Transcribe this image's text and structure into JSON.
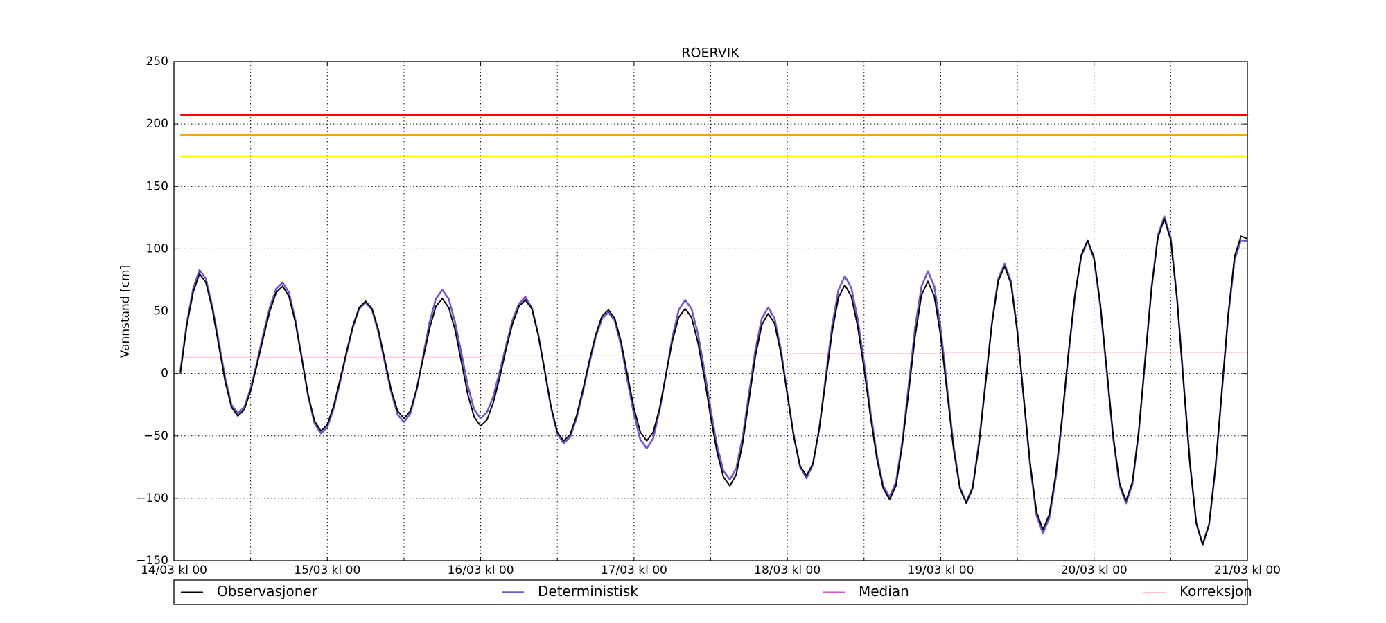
{
  "chart_data": {
    "type": "line",
    "title": "ROERVIK",
    "ylabel": "Vannstand [cm]",
    "xlim": [
      0,
      168
    ],
    "ylim": [
      -150,
      250
    ],
    "xticks": [
      {
        "value": 0,
        "label": "14/03 kl 00"
      },
      {
        "value": 24,
        "label": "15/03 kl 00"
      },
      {
        "value": 48,
        "label": "16/03 kl 00"
      },
      {
        "value": 72,
        "label": "17/03 kl 00"
      },
      {
        "value": 96,
        "label": "18/03 kl 00"
      },
      {
        "value": 120,
        "label": "19/03 kl 00"
      },
      {
        "value": 144,
        "label": "20/03 kl 00"
      },
      {
        "value": 168,
        "label": "21/03 kl 00"
      }
    ],
    "x_minor_ticks": [
      12,
      36,
      60,
      84,
      108,
      132,
      156
    ],
    "yticks": [
      {
        "value": -150,
        "label": "−150"
      },
      {
        "value": -100,
        "label": "−100"
      },
      {
        "value": -50,
        "label": "−50"
      },
      0,
      50,
      100,
      150,
      200,
      250
    ],
    "grid": true,
    "legend": "below",
    "reference_lines": [
      {
        "value": 207,
        "color": "#ff0000"
      },
      {
        "value": 191,
        "color": "#ffa500"
      },
      {
        "value": 174,
        "color": "#ffff00"
      }
    ],
    "x": [
      1,
      2,
      3,
      4,
      5,
      6,
      7,
      8,
      9,
      10,
      11,
      12,
      13,
      14,
      15,
      16,
      17,
      18,
      19,
      20,
      21,
      22,
      23,
      24,
      25,
      26,
      27,
      28,
      29,
      30,
      31,
      32,
      33,
      34,
      35,
      36,
      37,
      38,
      39,
      40,
      41,
      42,
      43,
      44,
      45,
      46,
      47,
      48,
      49,
      50,
      51,
      52,
      53,
      54,
      55,
      56,
      57,
      58,
      59,
      60,
      61,
      62,
      63,
      64,
      65,
      66,
      67,
      68,
      69,
      70,
      71,
      72,
      73,
      74,
      75,
      76,
      77,
      78,
      79,
      80,
      81,
      82,
      83,
      84,
      85,
      86,
      87,
      88,
      89,
      90,
      91,
      92,
      93,
      94,
      95,
      96,
      97,
      98,
      99,
      100,
      101,
      102,
      103,
      104,
      105,
      106,
      107,
      108,
      109,
      110,
      111,
      112,
      113,
      114,
      115,
      116,
      117,
      118,
      119,
      120,
      121,
      122,
      123,
      124,
      125,
      126,
      127,
      128,
      129,
      130,
      131,
      132,
      133,
      134,
      135,
      136,
      137,
      138,
      139,
      140,
      141,
      142,
      143,
      144,
      145,
      146,
      147,
      148,
      149,
      150,
      151,
      152,
      153,
      154,
      155,
      156,
      157,
      158,
      159,
      160,
      161,
      162,
      163,
      164,
      165,
      166,
      167,
      168
    ],
    "series": [
      {
        "name": "Observasjoner",
        "color": "#000000",
        "width": 2,
        "values": [
          0,
          38,
          65,
          80,
          73,
          52,
          23,
          -6,
          -27,
          -34,
          -29,
          -14,
          7,
          29,
          50,
          65,
          70,
          62,
          41,
          12,
          -17,
          -38,
          -46,
          -41,
          -26,
          -5,
          17,
          38,
          53,
          58,
          52,
          35,
          11,
          -13,
          -30,
          -36,
          -30,
          -12,
          12,
          36,
          54,
          60,
          53,
          35,
          9,
          -17,
          -35,
          -42,
          -37,
          -23,
          -3,
          20,
          40,
          54,
          59,
          52,
          31,
          3,
          -26,
          -47,
          -54,
          -49,
          -34,
          -13,
          10,
          31,
          46,
          51,
          44,
          25,
          -2,
          -28,
          -47,
          -54,
          -47,
          -28,
          -1,
          26,
          45,
          52,
          45,
          25,
          -3,
          -35,
          -63,
          -83,
          -90,
          -81,
          -56,
          -21,
          14,
          39,
          48,
          40,
          16,
          -17,
          -50,
          -74,
          -82,
          -72,
          -44,
          -6,
          33,
          61,
          71,
          62,
          38,
          4,
          -34,
          -68,
          -92,
          -101,
          -90,
          -57,
          -14,
          30,
          63,
          74,
          62,
          30,
          -15,
          -60,
          -92,
          -104,
          -92,
          -57,
          -9,
          39,
          74,
          86,
          72,
          33,
          -20,
          -72,
          -111,
          -125,
          -113,
          -81,
          -35,
          17,
          63,
          95,
          107,
          93,
          55,
          3,
          -50,
          -88,
          -102,
          -87,
          -46,
          11,
          68,
          109,
          124,
          107,
          59,
          -7,
          -72,
          -120,
          -137,
          -121,
          -75,
          -14,
          48,
          94,
          110,
          108
        ]
      },
      {
        "name": "Deterministisk",
        "color": "#6a5acd",
        "width": 2.6,
        "values": [
          2,
          40,
          68,
          83,
          76,
          54,
          26,
          -3,
          -25,
          -32,
          -27,
          -12,
          9,
          32,
          53,
          68,
          73,
          65,
          43,
          13,
          -18,
          -40,
          -48,
          -43,
          -28,
          -7,
          16,
          37,
          52,
          57,
          51,
          33,
          9,
          -15,
          -33,
          -39,
          -32,
          -13,
          14,
          41,
          60,
          67,
          60,
          41,
          16,
          -10,
          -29,
          -36,
          -31,
          -18,
          2,
          23,
          43,
          56,
          61,
          53,
          32,
          3,
          -27,
          -48,
          -56,
          -51,
          -36,
          -15,
          8,
          29,
          44,
          49,
          42,
          22,
          -6,
          -33,
          -53,
          -60,
          -52,
          -30,
          -1,
          29,
          51,
          59,
          52,
          32,
          3,
          -29,
          -58,
          -78,
          -85,
          -76,
          -51,
          -16,
          19,
          44,
          53,
          44,
          19,
          -16,
          -50,
          -75,
          -84,
          -73,
          -44,
          -3,
          38,
          67,
          78,
          69,
          44,
          9,
          -30,
          -65,
          -90,
          -99,
          -87,
          -54,
          -9,
          37,
          70,
          82,
          70,
          36,
          -11,
          -57,
          -91,
          -103,
          -91,
          -55,
          -8,
          40,
          76,
          88,
          74,
          34,
          -20,
          -74,
          -114,
          -128,
          -116,
          -84,
          -37,
          15,
          62,
          94,
          106,
          92,
          53,
          1,
          -52,
          -90,
          -104,
          -89,
          -47,
          11,
          69,
          111,
          126,
          109,
          60,
          -6,
          -71,
          -120,
          -137,
          -121,
          -76,
          -15,
          46,
          91,
          107,
          106
        ]
      },
      {
        "name": "Median",
        "color": "#cc55cc",
        "width": 2,
        "values": [
          2,
          40,
          68,
          83,
          76,
          54,
          26,
          -3,
          -25,
          -32,
          -27,
          -12,
          9,
          32,
          53,
          68,
          73,
          65,
          43,
          13,
          -18,
          -40,
          -48,
          -43,
          -28,
          -7,
          16,
          37,
          52,
          57,
          51,
          33,
          9,
          -15,
          -33,
          -39,
          -32,
          -13,
          14,
          41,
          60,
          67,
          60,
          41,
          16,
          -10,
          -29,
          -36,
          -31,
          -18,
          2,
          23,
          43,
          56,
          62,
          53,
          32,
          3,
          -27,
          -48,
          -56,
          -51,
          -36,
          -15,
          8,
          29,
          44,
          49,
          42,
          22,
          -6,
          -33,
          -53,
          -60,
          -52,
          -30,
          -1,
          29,
          51,
          59,
          52,
          32,
          3,
          -29,
          -58,
          -78,
          -85,
          -76,
          -51,
          -16,
          19,
          44,
          53,
          44,
          19,
          -16,
          -50,
          -75,
          -84,
          -73,
          -44,
          -3,
          38,
          67,
          78,
          69,
          44,
          9,
          -30,
          -65,
          -90,
          -99,
          -87,
          -54,
          -9,
          37,
          70,
          82,
          70,
          36,
          -11,
          -57,
          -91,
          -103,
          -91,
          -55,
          -8,
          40,
          76,
          88,
          74,
          34,
          -20,
          -74,
          -114,
          -128,
          -116,
          -84,
          -37,
          15,
          62,
          94,
          106,
          92,
          53,
          1,
          -52,
          -90,
          -104,
          -89,
          -47,
          11,
          69,
          111,
          126,
          109,
          60,
          -6,
          -71,
          -120,
          -138,
          -121,
          -76,
          -15,
          46,
          91,
          107,
          106
        ]
      },
      {
        "name": "Korreksjon",
        "color": "#ffc0cb",
        "width": 1.2,
        "values": [
          13,
          13,
          13,
          13,
          13,
          13,
          13,
          13,
          13,
          13,
          13,
          13,
          13,
          13,
          13,
          13,
          13,
          13,
          13,
          13,
          13,
          13,
          13,
          13,
          13,
          13,
          13,
          13,
          13,
          13,
          13,
          13,
          13,
          13,
          13,
          13,
          13,
          13,
          13,
          13,
          13,
          13,
          13,
          13,
          13,
          13,
          13,
          13,
          14,
          14,
          14,
          14,
          14,
          14,
          14,
          14,
          14,
          14,
          14,
          14,
          14,
          14,
          14,
          14,
          14,
          14,
          14,
          14,
          14,
          14,
          14,
          14,
          14,
          14,
          14,
          14,
          14,
          14,
          14,
          14,
          14,
          14,
          14,
          14,
          14,
          14,
          14,
          14,
          14,
          14,
          14,
          14,
          14,
          14,
          14,
          14,
          16,
          16,
          16,
          16,
          16,
          16,
          16,
          16,
          16,
          16,
          16,
          16,
          16,
          16,
          16,
          16,
          16,
          16,
          16,
          16,
          16,
          16,
          16,
          16,
          17,
          17,
          17,
          17,
          17,
          17,
          17,
          17,
          17,
          17,
          17,
          17,
          17,
          17,
          17,
          17,
          17,
          17,
          17,
          17,
          17,
          17,
          17,
          17,
          17,
          17,
          17,
          17,
          17,
          17,
          17,
          17,
          17,
          17,
          17,
          17,
          17,
          17,
          17,
          17,
          17,
          17,
          17,
          17,
          17,
          17,
          17,
          17
        ]
      }
    ]
  }
}
